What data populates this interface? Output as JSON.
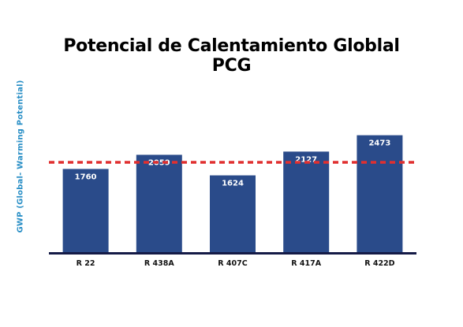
{
  "chart_data": {
    "type": "bar",
    "title": "Potencial de Calentamiento Globlal",
    "subtitle": "PCG",
    "ylabel": "GWP (Global- Warming Potential)",
    "xlabel": "",
    "categories": [
      "R 22",
      "R 438A",
      "R 407C",
      "R 417A",
      "R 422D"
    ],
    "values": [
      1760,
      2059,
      1624,
      2127,
      2473
    ],
    "ylim": [
      0,
      3000
    ],
    "reference_line": 1900,
    "grid": false,
    "legend": "none",
    "colors": {
      "bar": "#2a4b8a",
      "reference": "#e03030",
      "axis": "#141a46",
      "ylabel": "#2a8fc6",
      "value_label": "#ffffff"
    }
  }
}
